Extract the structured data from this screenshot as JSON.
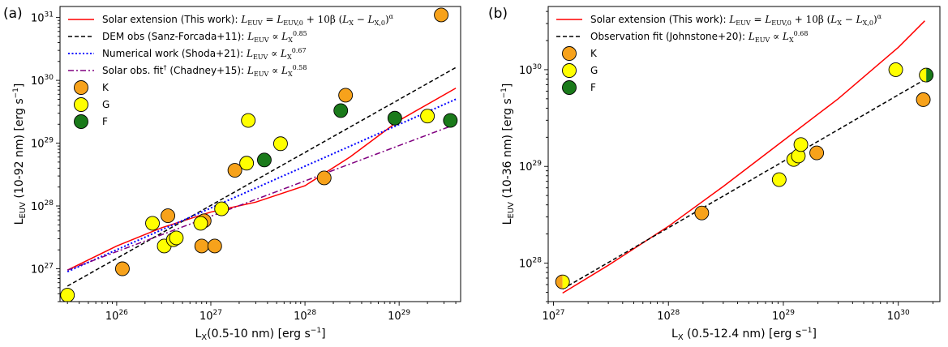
{
  "chart_data": [
    {
      "panel": "(a)",
      "type": "scatter",
      "xlabel_main": "L",
      "xlabel_sub": "X",
      "xlabel_rest": "(0.5-10 nm) [erg s",
      "xlabel_exp": "−1",
      "xlabel_end": "]",
      "ylabel_main": "L",
      "ylabel_sub": "EUV",
      "ylabel_rest": " (10-92 nm) [erg s",
      "ylabel_exp": "−1",
      "ylabel_end": "]",
      "xscale": "log",
      "yscale": "log",
      "xlim": [
        2.5e+25,
        4.5e+29
      ],
      "ylim": [
        3e+26,
        1.5e+31
      ],
      "xticks": [
        {
          "base": "10",
          "exp": "26",
          "value": 1e+26
        },
        {
          "base": "10",
          "exp": "27",
          "value": 1e+27
        },
        {
          "base": "10",
          "exp": "28",
          "value": 1e+28
        },
        {
          "base": "10",
          "exp": "29",
          "value": 1e+29
        }
      ],
      "yticks": [
        {
          "base": "10",
          "exp": "27",
          "value": 1e+27
        },
        {
          "base": "10",
          "exp": "28",
          "value": 1e+28
        },
        {
          "base": "10",
          "exp": "29",
          "value": 1e+29
        },
        {
          "base": "10",
          "exp": "30",
          "value": 1e+30
        },
        {
          "base": "10",
          "exp": "31",
          "value": 1e+31
        }
      ],
      "legend_placement": "upper left",
      "lines": [
        {
          "name": "Solar extension (This work): ",
          "formula": "L_EUV = L_EUV,0 + 10^β (L_X − L_X,0)^α",
          "color": "#ff0000",
          "style": "solid",
          "x": [
            3e+25,
            1e+26,
            3e+26,
            1e+27,
            3e+27,
            1e+28,
            3e+28,
            1e+29,
            4e+29
          ],
          "y": [
            9.5e+26,
            2.3e+27,
            4.5e+27,
            8e+27,
            1.15e+28,
            2.1e+28,
            6e+28,
            2.3e+29,
            7.5e+29
          ]
        },
        {
          "name": "DEM obs (Sanz-Forcada+11): ",
          "formula": "L_EUV ∝ L_X^0.85",
          "color": "#000000",
          "style": "dashed",
          "x": [
            3e+25,
            4e+29
          ],
          "y": [
            5.3e+26,
            1.6e+30
          ]
        },
        {
          "name": "Numerical work (Shoda+21): ",
          "formula": "L_EUV ∝ L_X^0.67",
          "color": "#0000ff",
          "style": "dotted",
          "x": [
            3e+25,
            4e+29
          ],
          "y": [
            9e+26,
            5e+29
          ]
        },
        {
          "name": "Solar obs. fit",
          "name_sup": "†",
          "name_end": " (Chadney+15): ",
          "formula": "L_EUV ∝ L_X^0.58",
          "color": "#800080",
          "style": "dashdot",
          "x": [
            3e+25,
            4e+29
          ],
          "y": [
            9.5e+26,
            2e+29
          ]
        }
      ],
      "scatter_series": [
        {
          "name": "K",
          "color": "#f7a21b",
          "points": [
            [
              1.15e+26,
              1e+27
            ],
            [
              3.5e+26,
              7e+27
            ],
            [
              8e+26,
              2.3e+27
            ],
            [
              1.1e+27,
              2.3e+27
            ],
            [
              8.5e+26,
              5.8e+27
            ],
            [
              1.8e+27,
              3.7e+28
            ],
            [
              1.6e+28,
              2.8e+28
            ],
            [
              2.7e+28,
              5.8e+29
            ],
            [
              2.8e+29,
              1.1e+31
            ]
          ]
        },
        {
          "name": "G",
          "color": "#ffff00",
          "points": [
            [
              3e+25,
              3.8e+26
            ],
            [
              2.4e+26,
              5.3e+27
            ],
            [
              3.2e+26,
              2.3e+27
            ],
            [
              4e+26,
              2.9e+27
            ],
            [
              4.3e+26,
              3.1e+27
            ],
            [
              7.8e+26,
              5.3e+27
            ],
            [
              1.3e+27,
              9e+27
            ],
            [
              2.4e+27,
              4.8e+28
            ],
            [
              2.5e+27,
              2.3e+29
            ],
            [
              5.5e+27,
              9.8e+28
            ],
            [
              2e+29,
              2.7e+29
            ]
          ]
        },
        {
          "name": "F",
          "color": "#1a7a1a",
          "points": [
            [
              3.7e+27,
              5.4e+28
            ],
            [
              2.4e+28,
              3.3e+29
            ],
            [
              9e+28,
              2.5e+29
            ],
            [
              3.5e+29,
              2.3e+29
            ]
          ]
        }
      ]
    },
    {
      "panel": "(b)",
      "type": "scatter",
      "xlabel_main": "L",
      "xlabel_sub": "X",
      "xlabel_rest": " (0.5-12.4 nm) [erg s",
      "xlabel_exp": "−1",
      "xlabel_end": "]",
      "ylabel_main": "L",
      "ylabel_sub": "EUV",
      "ylabel_rest": " (10-36 nm) [erg s",
      "ylabel_exp": "−1",
      "ylabel_end": "]",
      "xscale": "log",
      "yscale": "log",
      "xlim": [
        9e+26,
        2.3e+30
      ],
      "ylim": [
        4e+27,
        4.5e+30
      ],
      "xticks": [
        {
          "base": "10",
          "exp": "27",
          "value": 1e+27
        },
        {
          "base": "10",
          "exp": "28",
          "value": 1e+28
        },
        {
          "base": "10",
          "exp": "29",
          "value": 1e+29
        },
        {
          "base": "10",
          "exp": "30",
          "value": 1e+30
        }
      ],
      "yticks": [
        {
          "base": "10",
          "exp": "28",
          "value": 1e+28
        },
        {
          "base": "10",
          "exp": "29",
          "value": 1e+29
        },
        {
          "base": "10",
          "exp": "30",
          "value": 1e+30
        }
      ],
      "legend_placement": "upper left",
      "lines": [
        {
          "name": "Solar extension (This work): ",
          "formula": "L_EUV = L_EUV,0 + 10^β (L_X − L_X,0)^α",
          "color": "#ff0000",
          "style": "solid",
          "x": [
            1.2e+27,
            3e+27,
            1e+28,
            3e+28,
            1e+29,
            3e+29,
            1e+30,
            1.7e+30
          ],
          "y": [
            4.9e+27,
            9.5e+27,
            2.4e+28,
            6.2e+28,
            1.85e+29,
            5e+29,
            1.7e+30,
            3.2e+30
          ]
        },
        {
          "name": "Observation fit (Johnstone+20): ",
          "formula": "L_EUV ∝ L_X^0.68",
          "color": "#000000",
          "style": "dashed",
          "x": [
            1.2e+27,
            1.7e+30
          ],
          "y": [
            5.4e+27,
            7.9e+29
          ]
        }
      ],
      "scatter_series": [
        {
          "name": "K",
          "color": "#f7a21b",
          "points": [
            [
              1.95e+28,
              3.3e+28
            ],
            [
              1.95e+29,
              1.38e+29
            ],
            [
              1.65e+30,
              4.9e+29
            ]
          ]
        },
        {
          "name": "G",
          "color": "#ffff00",
          "points": [
            [
              9.2e+28,
              7.3e+28
            ],
            [
              1.23e+29,
              1.18e+29
            ],
            [
              1.35e+29,
              1.28e+29
            ],
            [
              1.42e+29,
              1.68e+29
            ],
            [
              9.5e+29,
              1e+30
            ]
          ]
        },
        {
          "name": "F",
          "color": "#1a7a1a",
          "points": []
        }
      ],
      "split_points": [
        {
          "x": 1.2e+27,
          "y": 6.4e+27,
          "left": "#f7a21b",
          "right": "#ffff00"
        },
        {
          "x": 1.75e+30,
          "y": 8.8e+29,
          "left": "#ffff00",
          "right": "#1a7a1a"
        }
      ]
    }
  ]
}
